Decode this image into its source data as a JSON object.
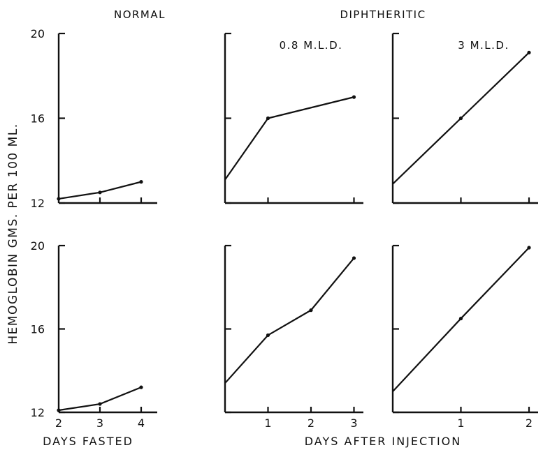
{
  "headers": {
    "normal": "NORMAL",
    "diphtheritic": "DIPHTHERITIC",
    "dose_low": "0.8 M.L.D.",
    "dose_high": "3 M.L.D."
  },
  "y_axis_label": "HEMOGLOBIN GMS. PER 100 ML.",
  "x_axis_labels": {
    "fasted": "DAYS FASTED",
    "injection": "DAYS AFTER INJECTION"
  },
  "chart_data": [
    {
      "type": "line",
      "group": "NORMAL",
      "row": 1,
      "x": [
        2,
        3,
        4
      ],
      "y": [
        12.2,
        12.5,
        13.0
      ],
      "xlim": [
        2,
        4.1
      ],
      "ylim": [
        12,
        20
      ],
      "yticks": [
        12,
        16,
        20
      ],
      "xticks": [],
      "xlabel": "",
      "ylabel": "HEMOGLOBIN GMS. PER 100 ML."
    },
    {
      "type": "line",
      "group": "DIPHTHERITIC",
      "annotation": "0.8 M.L.D.",
      "row": 1,
      "x": [
        0,
        1,
        3
      ],
      "y": [
        13.1,
        16.0,
        17.0
      ],
      "xlim": [
        0,
        3.2
      ],
      "ylim": [
        12,
        20
      ],
      "yticks": [
        12,
        16,
        20
      ],
      "xticks": [],
      "xlabel": "",
      "ylabel": ""
    },
    {
      "type": "line",
      "group": "DIPHTHERITIC",
      "annotation": "3 M.L.D.",
      "row": 1,
      "x": [
        0,
        1,
        2
      ],
      "y": [
        12.9,
        16.0,
        19.1
      ],
      "xlim": [
        0,
        2.2
      ],
      "ylim": [
        12,
        20
      ],
      "yticks": [
        12,
        16,
        20
      ],
      "xticks": [],
      "xlabel": "",
      "ylabel": ""
    },
    {
      "type": "line",
      "group": "NORMAL",
      "row": 2,
      "x": [
        2,
        3,
        4
      ],
      "y": [
        12.1,
        12.4,
        13.2
      ],
      "xlim": [
        2,
        4.1
      ],
      "ylim": [
        12,
        20
      ],
      "yticks": [
        12,
        16,
        20
      ],
      "xticks": [
        2,
        3,
        4
      ],
      "xlabel": "DAYS FASTED",
      "ylabel": "HEMOGLOBIN GMS. PER 100 ML."
    },
    {
      "type": "line",
      "group": "DIPHTHERITIC",
      "row": 2,
      "x": [
        0,
        1,
        2,
        3
      ],
      "y": [
        13.4,
        15.7,
        16.9,
        19.4
      ],
      "xlim": [
        0,
        3.2
      ],
      "ylim": [
        12,
        20
      ],
      "yticks": [
        12,
        16,
        20
      ],
      "xticks": [
        1,
        2,
        3
      ],
      "xlabel": "DAYS AFTER INJECTION",
      "ylabel": ""
    },
    {
      "type": "line",
      "group": "DIPHTHERITIC",
      "row": 2,
      "x": [
        0,
        1,
        2
      ],
      "y": [
        13.0,
        16.5,
        19.9
      ],
      "xlim": [
        0,
        2.2
      ],
      "ylim": [
        12,
        20
      ],
      "yticks": [
        12,
        16,
        20
      ],
      "xticks": [
        1,
        2
      ],
      "xlabel": "DAYS AFTER INJECTION",
      "ylabel": ""
    }
  ]
}
